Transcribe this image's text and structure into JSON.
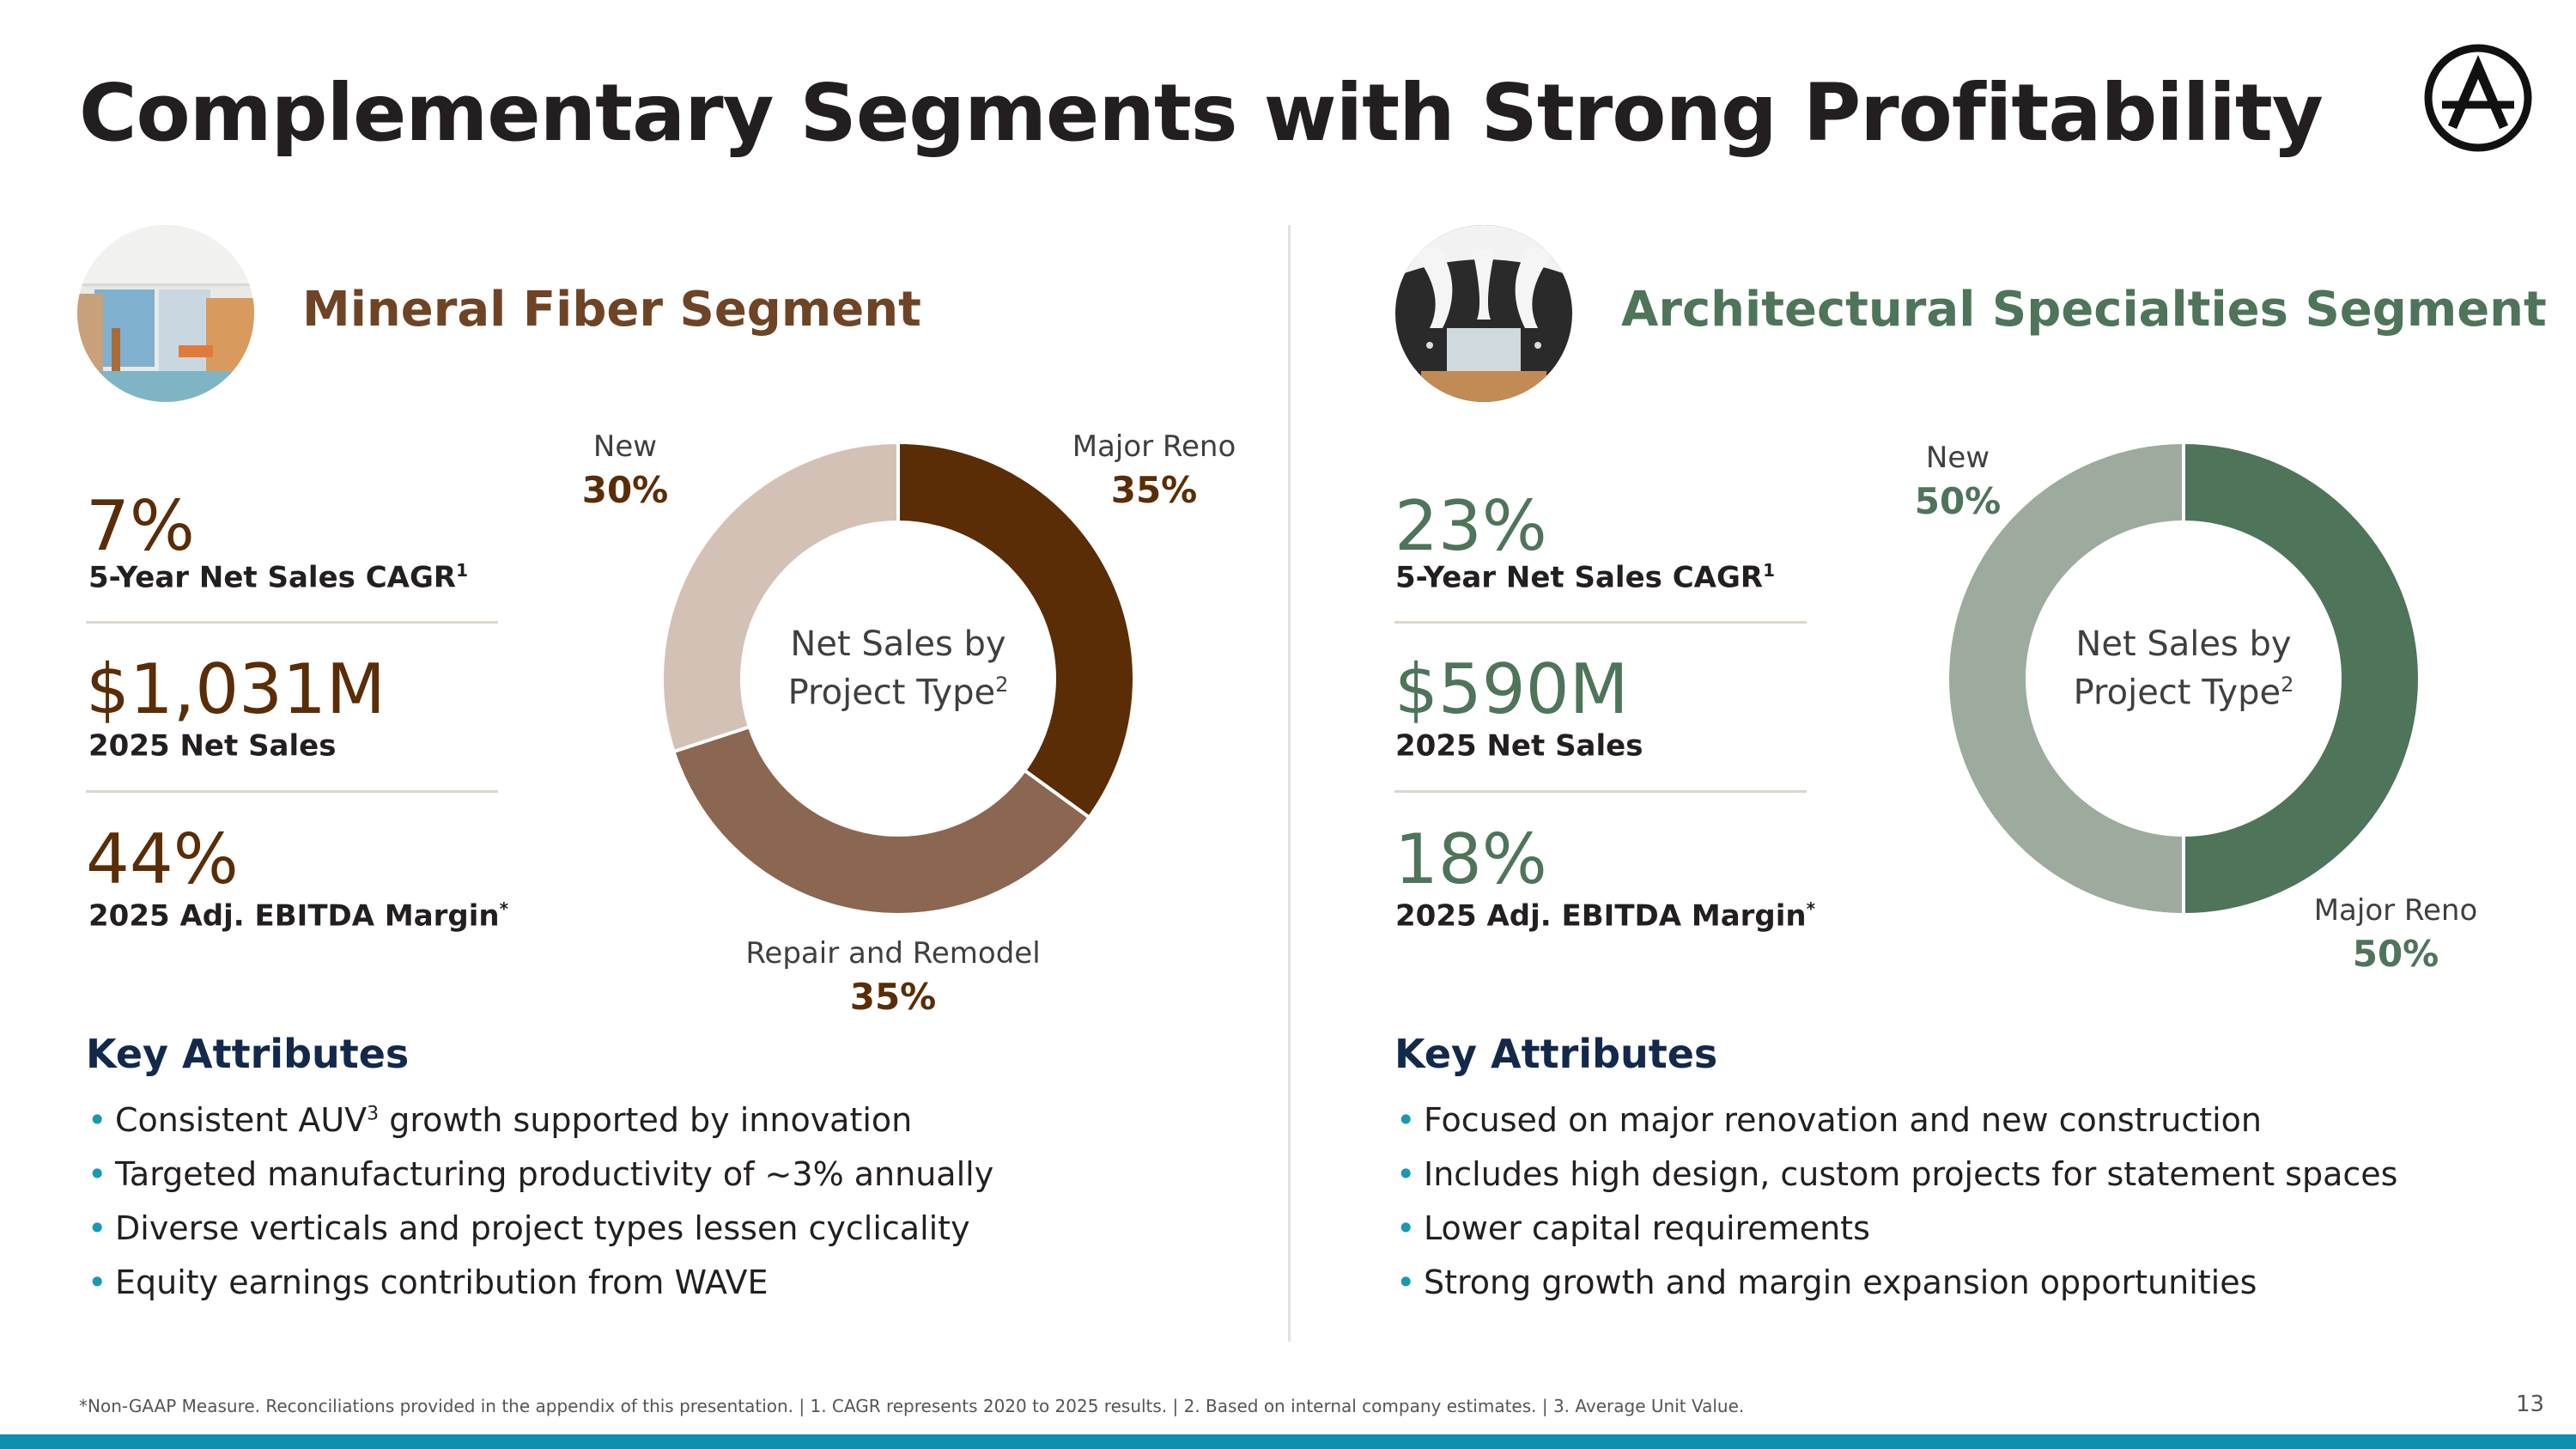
{
  "title": "Complementary Segments with Strong Profitability",
  "logo": {
    "icon": "armstrong-a-logo-icon"
  },
  "colors": {
    "mineral_dark": "#5a2d06",
    "mineral_mid": "#8b6650",
    "mineral_light": "#d4c1b5",
    "mineral_title": "#6e4425",
    "arch_dark": "#4e745a",
    "arch_light": "#9cab9e",
    "navy": "#13294b",
    "teal": "#0e8fae"
  },
  "left": {
    "segment_title": "Mineral Fiber Segment",
    "metrics": [
      {
        "value": "7%",
        "label": "5-Year Net Sales CAGR",
        "sup": "1"
      },
      {
        "value": "$1,031M",
        "label": "2025 Net Sales",
        "sup": ""
      },
      {
        "value": "44%",
        "label": "2025 Adj. EBITDA Margin",
        "sup": "*"
      }
    ],
    "key_attributes_title": "Key Attributes",
    "bullets": [
      {
        "pre": "Consistent AUV",
        "sup": "3",
        "post": " growth supported by innovation"
      },
      {
        "pre": "Targeted manufacturing productivity of ~3% annually",
        "sup": "",
        "post": ""
      },
      {
        "pre": "Diverse verticals and project types lessen cyclicality",
        "sup": "",
        "post": ""
      },
      {
        "pre": "Equity earnings contribution from WAVE",
        "sup": "",
        "post": ""
      }
    ]
  },
  "right": {
    "segment_title": "Architectural Specialties Segment",
    "metrics": [
      {
        "value": "23%",
        "label": "5-Year Net Sales CAGR",
        "sup": "1"
      },
      {
        "value": "$590M",
        "label": "2025 Net Sales",
        "sup": ""
      },
      {
        "value": "18%",
        "label": "2025 Adj. EBITDA Margin",
        "sup": "*"
      }
    ],
    "key_attributes_title": "Key Attributes",
    "bullets": [
      {
        "pre": "Focused on major renovation and new construction",
        "sup": "",
        "post": ""
      },
      {
        "pre": "Includes high design, custom projects for statement spaces",
        "sup": "",
        "post": ""
      },
      {
        "pre": "Lower capital requirements",
        "sup": "",
        "post": ""
      },
      {
        "pre": "Strong growth and margin expansion opportunities",
        "sup": "",
        "post": ""
      }
    ]
  },
  "chart_data": [
    {
      "type": "pie",
      "title": "Net Sales by Project Type",
      "title_sup": "2",
      "categories": [
        "Major Reno",
        "Repair and Remodel",
        "New"
      ],
      "values": [
        35,
        35,
        30
      ],
      "value_labels": [
        "35%",
        "35%",
        "30%"
      ],
      "colors": [
        "#5a2d06",
        "#8b6650",
        "#d4c1b5"
      ]
    },
    {
      "type": "pie",
      "title": "Net Sales by Project Type",
      "title_sup": "2",
      "categories": [
        "Major Reno",
        "New"
      ],
      "values": [
        50,
        50
      ],
      "value_labels": [
        "50%",
        "50%"
      ],
      "colors": [
        "#4e745a",
        "#9cab9e"
      ]
    }
  ],
  "footnote": "*Non-GAAP Measure. Reconciliations provided in the appendix of this presentation.   |   1. CAGR represents 2020 to 2025 results.   |   2. Based on internal company estimates.   |   3. Average Unit Value.",
  "page_number": "13"
}
